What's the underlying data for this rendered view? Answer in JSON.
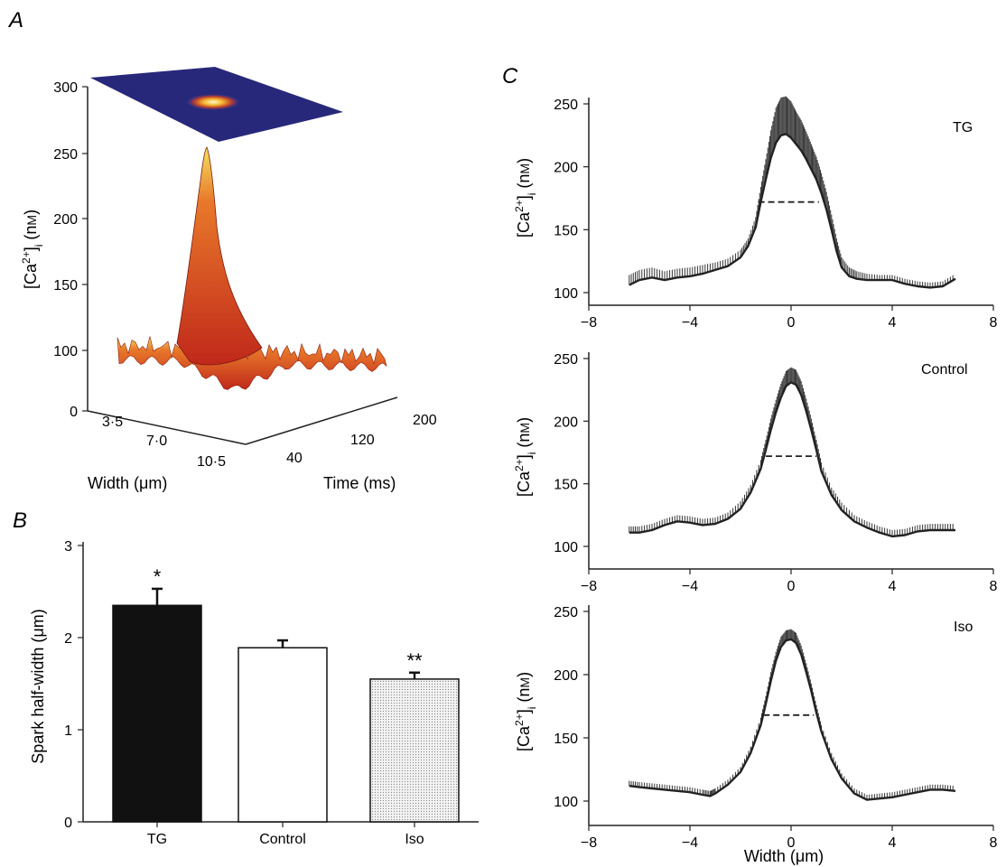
{
  "panel_letters": {
    "a": "A",
    "b": "B",
    "c": "C"
  },
  "panel_a": {
    "ylabel": "[Ca2+]i (nM)",
    "zticks": [
      "300",
      "250",
      "200",
      "150",
      "100",
      "0"
    ],
    "width_ticks": [
      "3·5",
      "7·0",
      "10·5"
    ],
    "time_ticks": [
      "40",
      "120",
      "200"
    ],
    "width_label": "Width (μm)",
    "time_label": "Time (ms)"
  },
  "chart_data": [
    {
      "id": "B",
      "type": "bar",
      "categories": [
        "TG",
        "Control",
        "Iso"
      ],
      "values": [
        2.35,
        1.89,
        1.55
      ],
      "errors": [
        0.18,
        0.08,
        0.07
      ],
      "significance": [
        "*",
        "",
        "**"
      ],
      "fills": [
        "#111111",
        "#ffffff",
        "#d9d9d9"
      ],
      "ylabel": "Spark half-width (μm)",
      "ylim": [
        0,
        3
      ],
      "yticks": [
        0,
        1,
        2,
        3
      ]
    },
    {
      "id": "C-TG",
      "type": "line",
      "label": "TG",
      "ylabel": "[Ca2+]i (nM)",
      "xlabel": "",
      "xlim": [
        -8,
        8
      ],
      "ylim": [
        95,
        260
      ],
      "xticks": [
        -8,
        -4,
        0,
        4,
        8
      ],
      "yticks": [
        100,
        150,
        200,
        250
      ],
      "x": [
        -6.4,
        -6.0,
        -5.5,
        -5.0,
        -4.5,
        -4.0,
        -3.5,
        -3.0,
        -2.5,
        -2.0,
        -1.7,
        -1.4,
        -1.2,
        -1.0,
        -0.8,
        -0.6,
        -0.4,
        -0.2,
        0.0,
        0.2,
        0.4,
        0.6,
        0.8,
        1.0,
        1.2,
        1.4,
        1.6,
        1.8,
        2.0,
        2.3,
        2.6,
        3.0,
        3.5,
        4.0,
        4.5,
        5.0,
        5.5,
        6.0,
        6.5
      ],
      "y": [
        106,
        110,
        112,
        110,
        112,
        113,
        115,
        118,
        121,
        128,
        137,
        152,
        172,
        190,
        207,
        219,
        225,
        226,
        223,
        218,
        213,
        206,
        198,
        190,
        179,
        166,
        150,
        133,
        120,
        113,
        111,
        110,
        110,
        110,
        107,
        105,
        104,
        105,
        111
      ],
      "error_upper": [
        8,
        8,
        8,
        7,
        7,
        7,
        7,
        6,
        6,
        6,
        6,
        8,
        12,
        16,
        22,
        28,
        30,
        30,
        29,
        26,
        24,
        22,
        20,
        18,
        16,
        14,
        12,
        10,
        8,
        7,
        6,
        5,
        4,
        4,
        4,
        4,
        4,
        4,
        4
      ],
      "half_width_line": {
        "x": [
          -1.3,
          1.1
        ],
        "y": 172
      }
    },
    {
      "id": "C-Control",
      "type": "line",
      "label": "Control",
      "ylabel": "[Ca2+]i (nM)",
      "xlabel": "",
      "xlim": [
        -8,
        8
      ],
      "ylim": [
        95,
        260
      ],
      "xticks": [
        -8,
        -4,
        0,
        4,
        8
      ],
      "yticks": [
        100,
        150,
        200,
        250
      ],
      "x": [
        -6.4,
        -6.0,
        -5.5,
        -5.0,
        -4.5,
        -4.0,
        -3.5,
        -3.0,
        -2.5,
        -2.0,
        -1.6,
        -1.2,
        -1.0,
        -0.8,
        -0.6,
        -0.4,
        -0.2,
        0.0,
        0.2,
        0.4,
        0.6,
        0.8,
        1.0,
        1.2,
        1.6,
        2.0,
        2.5,
        3.0,
        3.5,
        4.0,
        4.5,
        5.0,
        5.5,
        6.0,
        6.5
      ],
      "y": [
        111,
        111,
        113,
        117,
        120,
        119,
        117,
        118,
        122,
        130,
        143,
        162,
        177,
        193,
        207,
        219,
        228,
        231,
        229,
        221,
        208,
        193,
        177,
        160,
        141,
        129,
        120,
        115,
        111,
        108,
        109,
        112,
        113,
        113,
        113
      ],
      "error_upper": [
        5,
        5,
        5,
        5,
        5,
        5,
        5,
        5,
        5,
        6,
        6,
        7,
        8,
        9,
        10,
        11,
        12,
        12,
        12,
        11,
        10,
        9,
        8,
        7,
        6,
        6,
        5,
        5,
        5,
        5,
        5,
        5,
        5,
        5,
        5
      ],
      "half_width_line": {
        "x": [
          -1.0,
          1.0
        ],
        "y": 172
      }
    },
    {
      "id": "C-Iso",
      "type": "line",
      "label": "Iso",
      "ylabel": "[Ca2+]i (nM)",
      "xlabel": "Width (μm)",
      "xlim": [
        -8,
        8
      ],
      "ylim": [
        95,
        260
      ],
      "xticks": [
        -8,
        -4,
        0,
        4,
        8
      ],
      "yticks": [
        100,
        150,
        200,
        250
      ],
      "x": [
        -6.4,
        -6.0,
        -5.5,
        -5.0,
        -4.5,
        -4.0,
        -3.5,
        -3.2,
        -3.0,
        -2.5,
        -2.0,
        -1.6,
        -1.2,
        -1.0,
        -0.8,
        -0.6,
        -0.4,
        -0.2,
        0.0,
        0.2,
        0.4,
        0.6,
        0.8,
        1.0,
        1.2,
        1.6,
        2.0,
        2.5,
        3.0,
        3.5,
        4.0,
        4.5,
        5.0,
        5.5,
        6.0,
        6.5
      ],
      "y": [
        112,
        111,
        110,
        109,
        108,
        107,
        105,
        104,
        106,
        113,
        123,
        138,
        160,
        177,
        195,
        211,
        222,
        227,
        228,
        225,
        216,
        202,
        187,
        170,
        155,
        133,
        118,
        106,
        101,
        102,
        103,
        105,
        107,
        109,
        109,
        108
      ],
      "error_upper": [
        4,
        4,
        4,
        4,
        4,
        4,
        4,
        4,
        4,
        4,
        4,
        5,
        6,
        6,
        7,
        7,
        8,
        8,
        8,
        8,
        7,
        7,
        6,
        6,
        5,
        5,
        4,
        4,
        4,
        4,
        4,
        4,
        4,
        4,
        4,
        4
      ],
      "half_width_line": {
        "x": [
          -1.1,
          0.9
        ],
        "y": 168
      }
    }
  ]
}
